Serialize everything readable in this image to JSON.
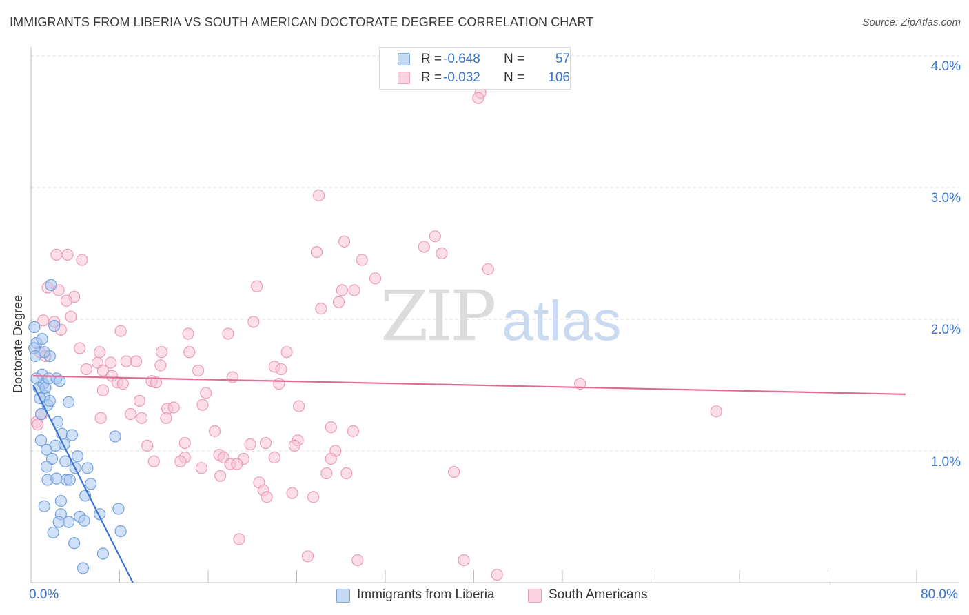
{
  "header": {
    "title": "IMMIGRANTS FROM LIBERIA VS SOUTH AMERICAN DOCTORATE DEGREE CORRELATION CHART",
    "source": "Source: ZipAtlas.com"
  },
  "watermark": {
    "zip": "ZIP",
    "atlas": "atlas"
  },
  "legend_top": [
    {
      "r_label": "R =",
      "r_value": "-0.648",
      "n_label": "N =",
      "n_value": "57",
      "color": "#7aa7e0"
    },
    {
      "r_label": "R =",
      "r_value": "-0.032",
      "n_label": "N =",
      "n_value": "106",
      "color": "#f0a2bd"
    }
  ],
  "legend_bottom": [
    {
      "label": "Immigrants from Liberia",
      "color": "#7aa7e0"
    },
    {
      "label": "South Americans",
      "color": "#f0a2bd"
    }
  ],
  "axes": {
    "ylabel": "Doctorate Degree",
    "yticks": [
      "4.0%",
      "3.0%",
      "2.0%",
      "1.0%"
    ],
    "xtick_left": "0.0%",
    "xtick_right": "80.0%"
  },
  "colors": {
    "blue_fill": "#a9c6ee",
    "blue_stroke": "#6f9fdc",
    "blue_line": "#3a74d0",
    "pink_fill": "#f7c3d4",
    "pink_stroke": "#ec9ab6",
    "pink_line": "#e06b94",
    "grid": "#dddddd",
    "tick_text": "#3a74c4"
  },
  "chart_data": {
    "type": "scatter",
    "title": "IMMIGRANTS FROM LIBERIA VS SOUTH AMERICAN DOCTORATE DEGREE CORRELATION CHART",
    "xlabel": "",
    "ylabel": "Doctorate Degree",
    "xlim": [
      0,
      80
    ],
    "ylim": [
      0,
      4.0
    ],
    "grid": true,
    "legend_position": "top-center",
    "series": [
      {
        "name": "Immigrants from Liberia",
        "r": -0.648,
        "n": 57,
        "trend": {
          "x": [
            0.2,
            9.2
          ],
          "y": [
            1.5,
            0.0
          ]
        },
        "points": [
          [
            0.3,
            1.94
          ],
          [
            0.5,
            1.82
          ],
          [
            0.3,
            1.78
          ],
          [
            0.4,
            1.72
          ],
          [
            1.0,
            1.58
          ],
          [
            1.1,
            1.51
          ],
          [
            0.5,
            1.55
          ],
          [
            0.7,
            1.48
          ],
          [
            1.2,
            1.42
          ],
          [
            1.3,
            1.48
          ],
          [
            1.6,
            1.55
          ],
          [
            1.7,
            1.72
          ],
          [
            2.3,
            1.55
          ],
          [
            2.6,
            1.53
          ],
          [
            1.8,
            2.26
          ],
          [
            0.8,
            1.4
          ],
          [
            1.5,
            1.35
          ],
          [
            0.9,
            1.28
          ],
          [
            1.7,
            1.38
          ],
          [
            3.4,
            1.37
          ],
          [
            2.4,
            1.22
          ],
          [
            2.8,
            1.13
          ],
          [
            3.7,
            1.12
          ],
          [
            7.6,
            1.11
          ],
          [
            0.9,
            1.08
          ],
          [
            1.4,
            1.01
          ],
          [
            2.2,
            1.04
          ],
          [
            3.0,
            1.05
          ],
          [
            1.9,
            0.94
          ],
          [
            3.1,
            0.92
          ],
          [
            4.2,
            0.96
          ],
          [
            1.4,
            0.88
          ],
          [
            4.0,
            0.87
          ],
          [
            5.1,
            0.87
          ],
          [
            1.5,
            0.78
          ],
          [
            2.3,
            0.79
          ],
          [
            3.2,
            0.78
          ],
          [
            3.5,
            0.78
          ],
          [
            5.4,
            0.75
          ],
          [
            4.9,
            0.66
          ],
          [
            2.7,
            0.62
          ],
          [
            1.2,
            0.58
          ],
          [
            7.9,
            0.56
          ],
          [
            2.7,
            0.52
          ],
          [
            4.4,
            0.5
          ],
          [
            6.2,
            0.52
          ],
          [
            2.5,
            0.46
          ],
          [
            3.4,
            0.46
          ],
          [
            4.8,
            0.47
          ],
          [
            2.0,
            0.38
          ],
          [
            8.1,
            0.39
          ],
          [
            3.9,
            0.3
          ],
          [
            6.5,
            0.22
          ],
          [
            4.7,
            0.11
          ],
          [
            2.1,
            1.95
          ],
          [
            1.0,
            1.85
          ],
          [
            1.2,
            1.75
          ]
        ]
      },
      {
        "name": "South Americans",
        "r": -0.032,
        "n": 106,
        "trend": {
          "x": [
            0.2,
            79.0
          ],
          "y": [
            1.57,
            1.43
          ]
        },
        "points": [
          [
            40.6,
            3.72
          ],
          [
            40.4,
            3.68
          ],
          [
            26.0,
            2.94
          ],
          [
            28.3,
            2.59
          ],
          [
            36.5,
            2.63
          ],
          [
            35.5,
            2.55
          ],
          [
            37.1,
            2.5
          ],
          [
            25.8,
            2.51
          ],
          [
            29.9,
            2.45
          ],
          [
            41.3,
            2.38
          ],
          [
            31.1,
            2.31
          ],
          [
            20.4,
            2.25
          ],
          [
            28.1,
            2.22
          ],
          [
            29.2,
            2.22
          ],
          [
            27.8,
            2.13
          ],
          [
            26.2,
            2.08
          ],
          [
            2.3,
            2.49
          ],
          [
            3.3,
            2.49
          ],
          [
            4.6,
            2.45
          ],
          [
            1.5,
            2.24
          ],
          [
            2.5,
            2.22
          ],
          [
            3.9,
            2.17
          ],
          [
            3.2,
            2.14
          ],
          [
            3.6,
            2.02
          ],
          [
            2.1,
            1.98
          ],
          [
            1.1,
            1.99
          ],
          [
            20.1,
            1.98
          ],
          [
            2.7,
            1.92
          ],
          [
            8.1,
            1.91
          ],
          [
            17.8,
            1.89
          ],
          [
            14.2,
            1.89
          ],
          [
            0.8,
            1.75
          ],
          [
            4.4,
            1.78
          ],
          [
            6.2,
            1.75
          ],
          [
            11.8,
            1.75
          ],
          [
            14.3,
            1.75
          ],
          [
            23.1,
            1.75
          ],
          [
            1.3,
            1.72
          ],
          [
            6.0,
            1.67
          ],
          [
            7.2,
            1.67
          ],
          [
            8.6,
            1.68
          ],
          [
            9.5,
            1.68
          ],
          [
            11.7,
            1.65
          ],
          [
            22.0,
            1.64
          ],
          [
            5.0,
            1.62
          ],
          [
            6.5,
            1.61
          ],
          [
            15.1,
            1.61
          ],
          [
            7.3,
            1.57
          ],
          [
            22.6,
            1.62
          ],
          [
            18.2,
            1.56
          ],
          [
            7.8,
            1.52
          ],
          [
            8.3,
            1.51
          ],
          [
            10.9,
            1.53
          ],
          [
            11.3,
            1.52
          ],
          [
            22.4,
            1.51
          ],
          [
            6.5,
            1.46
          ],
          [
            49.6,
            1.51
          ],
          [
            15.8,
            1.44
          ],
          [
            9.8,
            1.38
          ],
          [
            15.5,
            1.35
          ],
          [
            12.3,
            1.32
          ],
          [
            12.9,
            1.33
          ],
          [
            24.2,
            1.34
          ],
          [
            61.9,
            1.3
          ],
          [
            9.0,
            1.28
          ],
          [
            12.2,
            1.25
          ],
          [
            10.0,
            1.25
          ],
          [
            6.3,
            1.25
          ],
          [
            16.6,
            1.15
          ],
          [
            27.1,
            1.18
          ],
          [
            29.1,
            1.15
          ],
          [
            24.1,
            1.08
          ],
          [
            13.9,
            1.06
          ],
          [
            19.8,
            1.05
          ],
          [
            21.2,
            1.06
          ],
          [
            23.8,
            1.04
          ],
          [
            10.5,
            1.04
          ],
          [
            27.5,
            1.0
          ],
          [
            17.0,
            0.97
          ],
          [
            13.9,
            0.95
          ],
          [
            17.4,
            0.95
          ],
          [
            22.0,
            0.95
          ],
          [
            19.2,
            0.94
          ],
          [
            27.1,
            0.94
          ],
          [
            11.1,
            0.92
          ],
          [
            13.5,
            0.92
          ],
          [
            18.0,
            0.9
          ],
          [
            18.6,
            0.9
          ],
          [
            15.4,
            0.87
          ],
          [
            26.7,
            0.83
          ],
          [
            28.5,
            0.83
          ],
          [
            17.1,
            0.81
          ],
          [
            38.2,
            0.84
          ],
          [
            20.6,
            0.76
          ],
          [
            21.0,
            0.7
          ],
          [
            21.3,
            0.65
          ],
          [
            23.6,
            0.68
          ],
          [
            25.5,
            0.65
          ],
          [
            18.8,
            0.33
          ],
          [
            25.0,
            0.2
          ],
          [
            29.5,
            0.17
          ],
          [
            39.1,
            0.17
          ],
          [
            42.1,
            0.06
          ],
          [
            0.5,
            1.22
          ],
          [
            0.6,
            1.2
          ],
          [
            1.0,
            1.28
          ]
        ]
      }
    ]
  }
}
